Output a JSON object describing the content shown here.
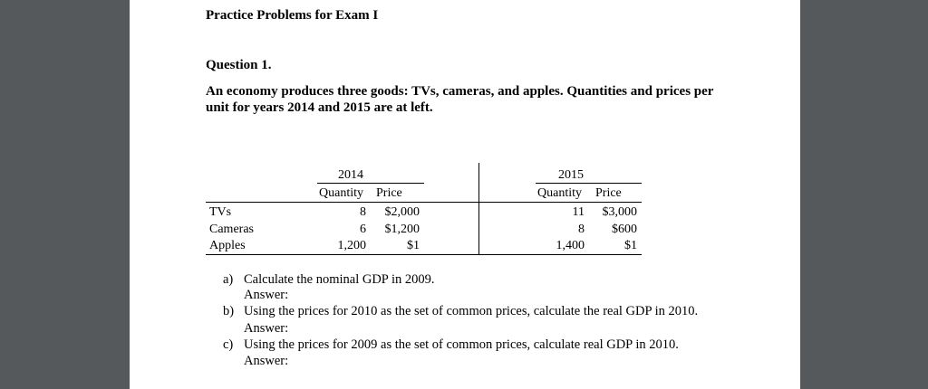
{
  "document": {
    "title": "Practice Problems for Exam I",
    "question_heading": "Question 1.",
    "intro_line1": "An economy produces three goods: TVs, cameras, and apples.  Quantities and prices per",
    "intro_line2": "unit for years 2014 and 2015 are at left."
  },
  "table": {
    "year_a": "2014",
    "year_b": "2015",
    "qty_header": "Quantity",
    "price_header": "Price",
    "rows": [
      {
        "good": "TVs",
        "qty_a": "8",
        "price_a": "$2,000",
        "qty_b": "11",
        "price_b": "$3,000"
      },
      {
        "good": "Cameras",
        "qty_a": "6",
        "price_a": "$1,200",
        "qty_b": "8",
        "price_b": "$600"
      },
      {
        "good": "Apples",
        "qty_a": "1,200",
        "price_a": "$1",
        "qty_b": "1,400",
        "price_b": "$1"
      }
    ]
  },
  "questions": [
    {
      "label": "a)",
      "text": "Calculate the nominal GDP in 2009.",
      "answer": "Answer:"
    },
    {
      "label": "b)",
      "text": "Using the prices for 2010 as the set of common prices, calculate the real GDP in 2010.",
      "answer": "Answer:"
    },
    {
      "label": "c)",
      "text": "Using the prices for 2009 as the set of common prices, calculate real GDP in 2010.",
      "answer": "Answer:"
    }
  ]
}
